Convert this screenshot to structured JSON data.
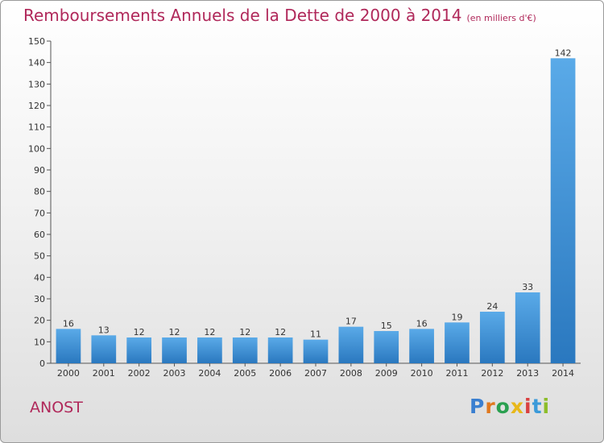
{
  "title": "Remboursements Annuels de la Dette de 2000 à 2014",
  "subtitle": "(en milliers d'€)",
  "town": "ANOST",
  "logo": {
    "letters": [
      "P",
      "r",
      "o",
      "x",
      "i",
      "t",
      "i"
    ],
    "colors": [
      "#3a7fd0",
      "#e0781e",
      "#2aa050",
      "#e8b81a",
      "#d94040",
      "#3a9ad9",
      "#8cbd2a"
    ]
  },
  "colors": {
    "accent": "#b0285a",
    "bar_top": "#5aaae8",
    "bar_bottom": "#2a78bf"
  },
  "chart_data": {
    "type": "bar",
    "categories": [
      "2000",
      "2001",
      "2002",
      "2003",
      "2004",
      "2005",
      "2006",
      "2007",
      "2008",
      "2009",
      "2010",
      "2011",
      "2012",
      "2013",
      "2014"
    ],
    "values": [
      16,
      13,
      12,
      12,
      12,
      12,
      12,
      11,
      17,
      15,
      16,
      19,
      24,
      33,
      142
    ],
    "ylim": [
      0,
      150
    ],
    "yticks": [
      0,
      10,
      20,
      30,
      40,
      50,
      60,
      70,
      80,
      90,
      100,
      110,
      120,
      130,
      140,
      150
    ],
    "grid": false
  }
}
